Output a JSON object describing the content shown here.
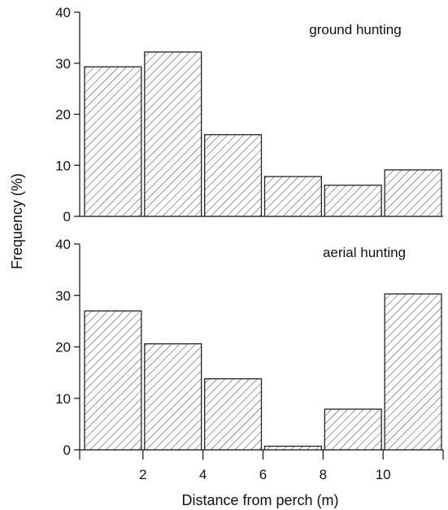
{
  "chart_data": {
    "type": "bar",
    "ylabel": "Frequency (%)",
    "xlabel": "Distance from perch (m)",
    "x_ticks": [
      "2",
      "4",
      "6",
      "8",
      "10"
    ],
    "xlim": [
      0,
      12
    ],
    "panels": [
      {
        "label": "ground hunting",
        "ylim": [
          0,
          40
        ],
        "y_ticks": [
          "0",
          "10",
          "20",
          "30",
          "40"
        ],
        "bins": [
          [
            0,
            2
          ],
          [
            2,
            4
          ],
          [
            4,
            6
          ],
          [
            6,
            8
          ],
          [
            8,
            10
          ],
          [
            10,
            12
          ]
        ],
        "values": [
          29.3,
          32.2,
          16.0,
          7.8,
          6.1,
          9.1
        ]
      },
      {
        "label": "aerial hunting",
        "ylim": [
          0,
          40
        ],
        "y_ticks": [
          "0",
          "10",
          "20",
          "30",
          "40"
        ],
        "bins": [
          [
            0,
            2
          ],
          [
            2,
            4
          ],
          [
            4,
            6
          ],
          [
            6,
            8
          ],
          [
            8,
            10
          ],
          [
            10,
            12
          ]
        ],
        "values": [
          27.0,
          20.6,
          13.8,
          0.7,
          7.9,
          30.3
        ]
      }
    ],
    "pattern": "diagonal hatch",
    "bar_fill": "#ffffff",
    "bar_stroke": "#222222",
    "grid": false,
    "legend": "none"
  }
}
